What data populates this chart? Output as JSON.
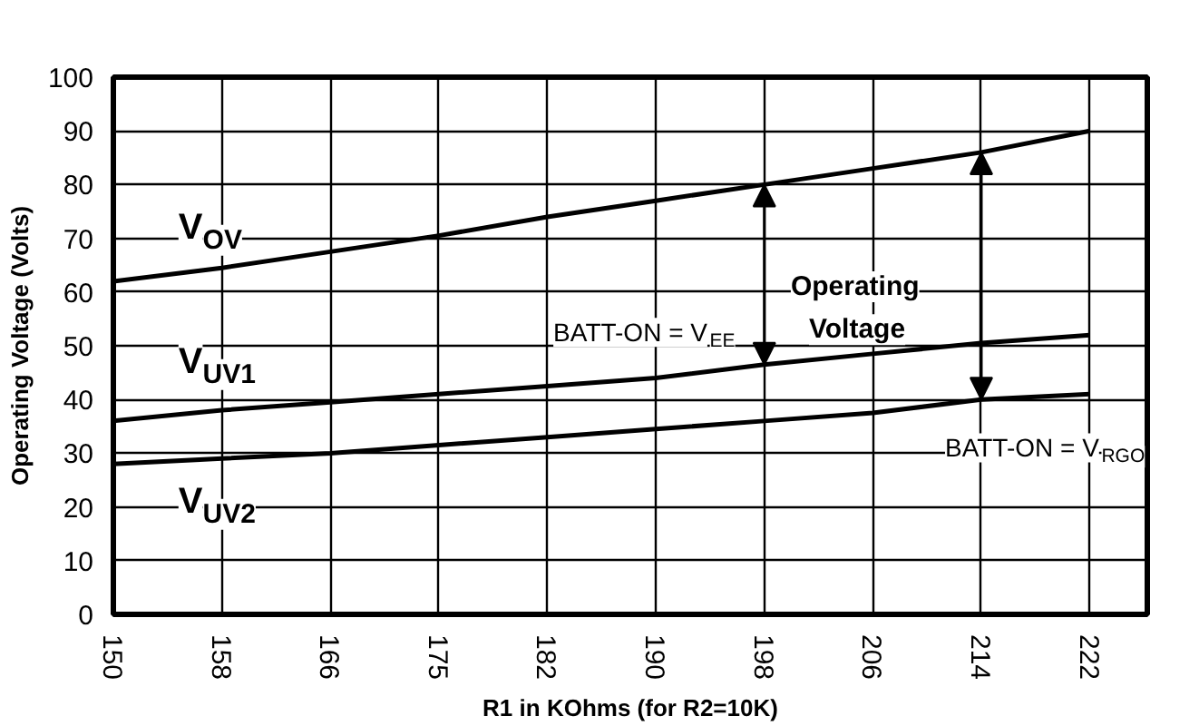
{
  "chart_data": {
    "type": "line",
    "xlabel": "R1 in KOhms (for R2=10K)",
    "ylabel": "Operating Voltage (Volts)",
    "categories": [
      "150",
      "158",
      "166",
      "175",
      "182",
      "190",
      "198",
      "206",
      "214",
      "222"
    ],
    "series": [
      {
        "name": "V$_{OV}$",
        "color": "#000000",
        "values": [
          62,
          64.5,
          67.5,
          70.5,
          74,
          77,
          80,
          83,
          86,
          90
        ]
      },
      {
        "name": "V$_{UV1}$",
        "color": "#000000",
        "values": [
          36,
          38,
          39.5,
          41,
          42.5,
          44,
          46.5,
          48.5,
          50.5,
          52
        ]
      },
      {
        "name": "V$_{UV2}$",
        "color": "#000000",
        "values": [
          28,
          29,
          30,
          31.5,
          33,
          34.5,
          36,
          37.5,
          40,
          41
        ]
      }
    ],
    "ylim": [
      0,
      100
    ],
    "yticks": [
      0,
      10,
      20,
      30,
      40,
      50,
      60,
      70,
      80,
      90,
      100
    ],
    "grid": true,
    "marker": "none",
    "line_style": "solid",
    "annotations": [
      {
        "text": "BATT-ON = V$_{EE}$",
        "x": "198",
        "y": 46.5
      },
      {
        "text": "BATT-ON = V$_{RGO}$",
        "x": "214",
        "y": 40
      },
      "Operating Voltage"
    ]
  }
}
